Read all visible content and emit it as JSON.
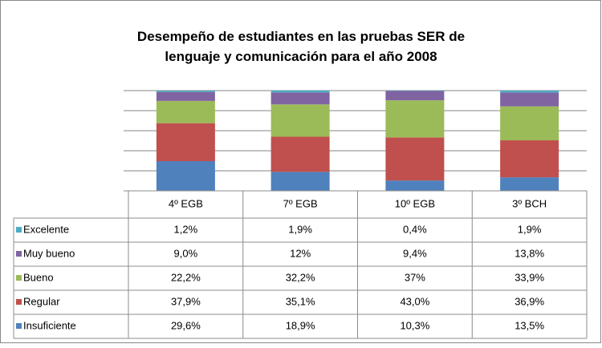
{
  "chart_data": {
    "type": "bar",
    "stacked": true,
    "title": "Desempeño de estudiantes en las pruebas SER de lenguaje y comunicación para el año 2008",
    "categories": [
      "4º EGB",
      "7º EGB",
      "10º EGB",
      "3º BCH"
    ],
    "series": [
      {
        "name": "Excelente",
        "color": "#4bacc6",
        "values": [
          1.2,
          1.9,
          0.4,
          1.9
        ],
        "value_labels": [
          "1,2%",
          "1,9%",
          "0,4%",
          "1,9%"
        ]
      },
      {
        "name": "Muy bueno",
        "color": "#8064a2",
        "values": [
          9.0,
          12,
          9.4,
          13.8
        ],
        "value_labels": [
          "9,0%",
          "12%",
          "9,4%",
          "13,8%"
        ]
      },
      {
        "name": "Bueno",
        "color": "#9bbb59",
        "values": [
          22.2,
          32.2,
          37,
          33.9
        ],
        "value_labels": [
          "22,2%",
          "32,2%",
          "37%",
          "33,9%"
        ]
      },
      {
        "name": "Regular",
        "color": "#c0504d",
        "values": [
          37.9,
          35.1,
          43.0,
          36.9
        ],
        "value_labels": [
          "37,9%",
          "35,1%",
          "43,0%",
          "36,9%"
        ]
      },
      {
        "name": "Insuficiente",
        "color": "#4f81bd",
        "values": [
          29.6,
          18.9,
          10.3,
          13.5
        ],
        "value_labels": [
          "29,6%",
          "18,9%",
          "10,3%",
          "13,5%"
        ]
      }
    ],
    "ylim": [
      0,
      100
    ],
    "yticks": [
      0,
      20,
      40,
      60,
      80,
      100
    ],
    "grid": true
  }
}
